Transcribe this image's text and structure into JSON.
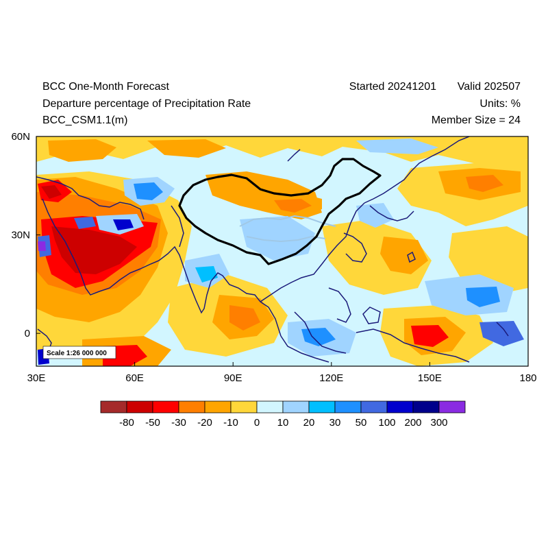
{
  "header": {
    "title": "BCC One-Month Forecast",
    "subtitle": "Departure percentage of Precipitation Rate",
    "model": "BCC_CSM1.1(m)",
    "started": "Started 20241201",
    "valid": "Valid 202507",
    "units": "Units: %",
    "member_size": "Member Size = 24"
  },
  "map": {
    "extent": {
      "lon": [
        30,
        180
      ],
      "lat": [
        -10,
        60
      ]
    },
    "x_ticks": [
      {
        "value": 30,
        "label": "30E"
      },
      {
        "value": 60,
        "label": "60E"
      },
      {
        "value": 90,
        "label": "90E"
      },
      {
        "value": 120,
        "label": "120E"
      },
      {
        "value": 150,
        "label": "150E"
      },
      {
        "value": 180,
        "label": "180"
      }
    ],
    "y_ticks": [
      {
        "value": 60,
        "label": "60N"
      },
      {
        "value": 30,
        "label": "30N"
      },
      {
        "value": 0,
        "label": "0"
      }
    ],
    "scale_label": "Scale 1:26 000 000",
    "background_color": "#d2f6ff",
    "coast_color": "#1a1a7a",
    "china_border_color": "#000000",
    "river_color": "#a0c8e6"
  },
  "colorbar": {
    "colors": [
      "#a52a2a",
      "#cd0000",
      "#ff0000",
      "#ff7f00",
      "#ffa500",
      "#ffd73a",
      "#d2f6ff",
      "#a0d4ff",
      "#00bfff",
      "#1e90ff",
      "#4169e1",
      "#0000cd",
      "#00008b",
      "#8a2be2"
    ],
    "labels": [
      "-80",
      "-50",
      "-30",
      "-20",
      "-10",
      "0",
      "10",
      "20",
      "30",
      "50",
      "100",
      "200",
      "300"
    ]
  }
}
